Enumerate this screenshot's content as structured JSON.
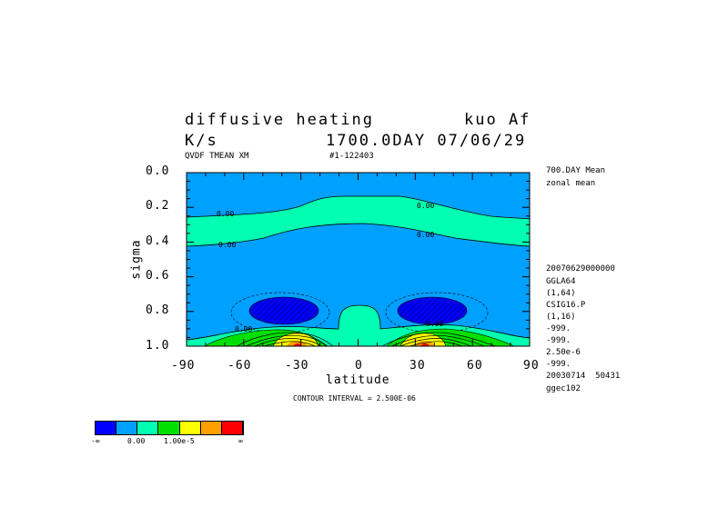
{
  "header": {
    "title_left": "diffusive heating",
    "title_right": "kuo Af",
    "units": "K/s",
    "time": "1700.0DAY 07/06/29",
    "var_desc": "QVDF TMEAN XM",
    "run_id": "#1-122403"
  },
  "side_info": {
    "top": [
      "700.DAY Mean",
      "zonal mean"
    ],
    "bottom": [
      "20070629000000",
      "GGLA64",
      "(1,64)",
      "CSIG16.P",
      "(1,16)",
      "-999.",
      "-999.",
      "2.50e-6",
      "-999.",
      "20030714  50431",
      "ggec102"
    ]
  },
  "contour_interval": "CONTOUR INTERVAL = 2.500E-06",
  "colorbar": {
    "colors": [
      "#0000ff",
      "#00a0ff",
      "#00ffb0",
      "#00e000",
      "#ffff00",
      "#ffa000",
      "#ff0000"
    ],
    "labels": [
      "-∞",
      "0.00",
      "1.00e-5",
      "∞"
    ]
  },
  "chart_data": {
    "type": "contour",
    "xlabel": "latitude",
    "ylabel": "sigma",
    "xlim": [
      -90,
      90
    ],
    "ylim": [
      1.0,
      0.0
    ],
    "x_ticks": [
      "-90",
      "-60",
      "-30",
      "0",
      "30",
      "60",
      "90"
    ],
    "y_ticks": [
      "0.0",
      "0.2",
      "0.4",
      "0.6",
      "0.8",
      "1.0"
    ],
    "contour_labels": [
      "0.00",
      "0.00",
      "0.00",
      "0.00",
      "0.00",
      "0.00"
    ],
    "units": "K/s",
    "regions": [
      {
        "name": "upper band",
        "level": "near zero",
        "color": "#00a0ff"
      },
      {
        "name": "mid band",
        "level": "0.00 to 2.5e-6",
        "color": "#00ffb0"
      },
      {
        "name": "SH minimum lat -40 sigma 0.8",
        "level": "< -2.5e-6",
        "color": "#0000ff"
      },
      {
        "name": "NH minimum lat 40 sigma 0.8",
        "level": "< -2.5e-6",
        "color": "#0000ff"
      },
      {
        "name": "surface maxima",
        "level": "> 1.0e-5",
        "color": "#ff0000"
      }
    ]
  }
}
